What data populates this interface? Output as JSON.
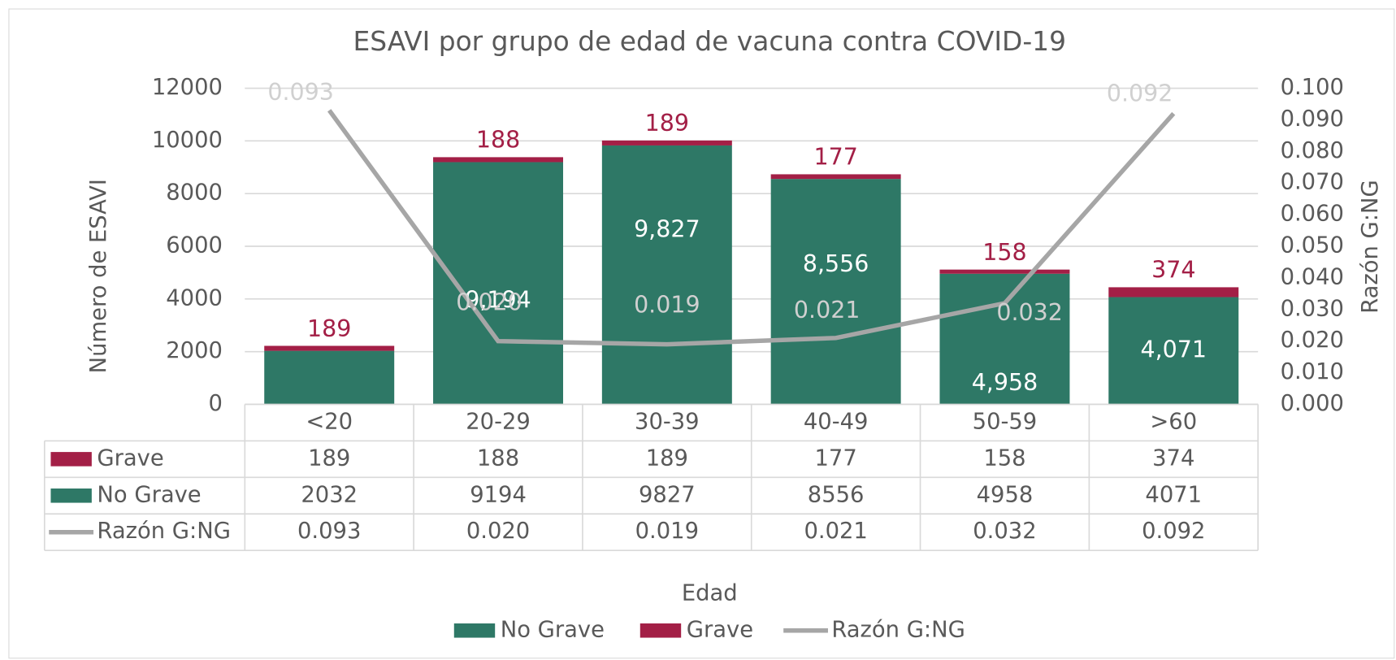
{
  "chart_data": {
    "type": "bar",
    "title": "ESAVI por grupo de edad de vacuna contra COVID-19",
    "x_label": "Edad",
    "y_label": "Número de ESAVI",
    "y2_label": "Razón G:NG",
    "categories": [
      "<20",
      "20-29",
      "30-39",
      "40-49",
      "50-59",
      ">60"
    ],
    "series": [
      {
        "name": "No Grave",
        "color": "#2e7866",
        "values": [
          2032,
          9194,
          9827,
          8556,
          4958,
          4071
        ],
        "value_labels": [
          "2,032",
          "9,194",
          "9,827",
          "8,556",
          "4,958",
          "4,071"
        ]
      },
      {
        "name": "Grave",
        "color": "#a31f46",
        "values": [
          189,
          188,
          189,
          177,
          158,
          374
        ]
      },
      {
        "name": "Razón G:NG",
        "type": "line",
        "axis": "y2",
        "color": "#a6a6a6",
        "values": [
          0.093,
          0.02,
          0.019,
          0.021,
          0.032,
          0.092
        ],
        "value_labels": [
          "0.093",
          "0.020",
          "0.019",
          "0.021",
          "0.032",
          "0.092"
        ]
      }
    ],
    "stacked": true,
    "ylim": [
      0,
      12000
    ],
    "yticks": [
      0,
      2000,
      4000,
      6000,
      8000,
      10000,
      12000
    ],
    "y2lim": [
      0,
      0.1
    ],
    "y2ticks": [
      {
        "value": 0,
        "label": "0.000"
      },
      {
        "value": 0.01,
        "label": "0.010"
      },
      {
        "value": 0.02,
        "label": "0.020"
      },
      {
        "value": 0.03,
        "label": "0.030"
      },
      {
        "value": 0.04,
        "label": "0.040"
      },
      {
        "value": 0.05,
        "label": "0.050"
      },
      {
        "value": 0.06,
        "label": "0.060"
      },
      {
        "value": 0.07,
        "label": "0.070"
      },
      {
        "value": 0.08,
        "label": "0.080"
      },
      {
        "value": 0.09,
        "label": "0.090"
      },
      {
        "value": 0.1,
        "label": "0.100"
      }
    ],
    "grid": true,
    "legend": "bottom",
    "data_table": true
  }
}
